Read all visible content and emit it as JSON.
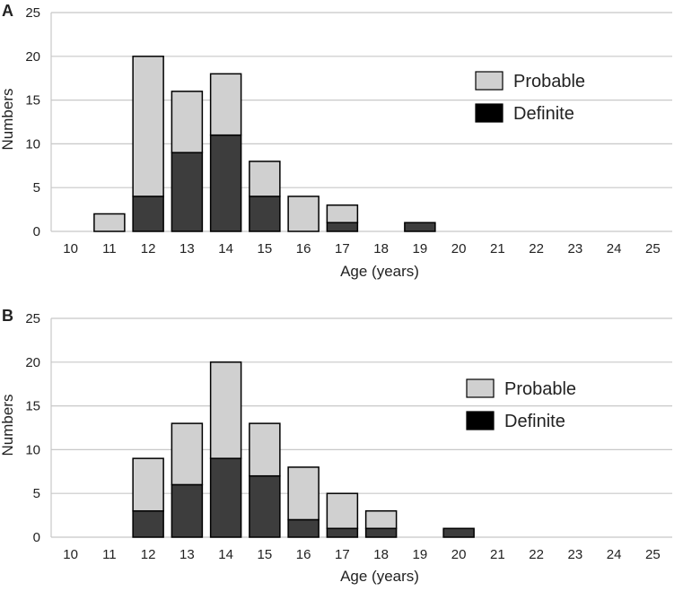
{
  "chart_data": [
    {
      "panel": "A",
      "type": "bar",
      "stacked": true,
      "categories": [
        "10",
        "11",
        "12",
        "13",
        "14",
        "15",
        "16",
        "17",
        "18",
        "19",
        "20",
        "21",
        "22",
        "23",
        "24",
        "25"
      ],
      "series": [
        {
          "name": "Definite",
          "color": "#3d3d3d",
          "values": [
            0,
            0,
            4,
            9,
            11,
            4,
            0,
            1,
            0,
            1,
            0,
            0,
            0,
            0,
            0,
            0
          ]
        },
        {
          "name": "Probable",
          "color": "#d0d0d0",
          "values": [
            0,
            2,
            16,
            7,
            7,
            4,
            4,
            2,
            0,
            0,
            0,
            0,
            0,
            0,
            0,
            0
          ]
        }
      ],
      "legend": [
        "Probable",
        "Definite"
      ],
      "legend_position": "top-right",
      "xlabel": "Age (years)",
      "ylabel": "Numbers",
      "ylim": [
        0,
        25
      ],
      "yticks": [
        "0",
        "5",
        "10",
        "15",
        "20",
        "25"
      ],
      "grid": true
    },
    {
      "panel": "B",
      "type": "bar",
      "stacked": true,
      "categories": [
        "10",
        "11",
        "12",
        "13",
        "14",
        "15",
        "16",
        "17",
        "18",
        "19",
        "20",
        "21",
        "22",
        "23",
        "24",
        "25"
      ],
      "series": [
        {
          "name": "Definite",
          "color": "#3d3d3d",
          "values": [
            0,
            0,
            3,
            6,
            9,
            7,
            2,
            1,
            1,
            0,
            1,
            0,
            0,
            0,
            0,
            0
          ]
        },
        {
          "name": "Probable",
          "color": "#d0d0d0",
          "values": [
            0,
            0,
            6,
            7,
            11,
            6,
            6,
            4,
            2,
            0,
            0,
            0,
            0,
            0,
            0,
            0
          ]
        }
      ],
      "legend": [
        "Probable",
        "Definite"
      ],
      "legend_position": "top-right",
      "xlabel": "Age (years)",
      "ylabel": "Numbers",
      "ylim": [
        0,
        25
      ],
      "yticks": [
        "0",
        "5",
        "10",
        "15",
        "20",
        "25"
      ],
      "grid": true
    }
  ]
}
